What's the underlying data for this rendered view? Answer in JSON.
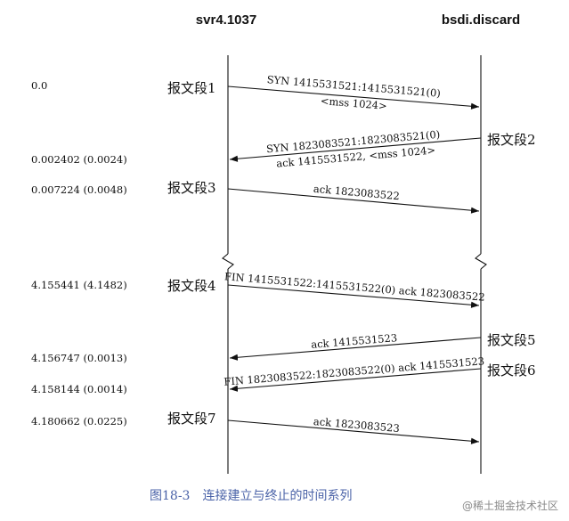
{
  "hosts": {
    "left": "svr4.1037",
    "right": "bsdi.discard"
  },
  "times": [
    "0.0",
    "0.002402 (0.0024)",
    "0.007224 (0.0048)",
    "4.155441 (4.1482)",
    "4.156747 (0.0013)",
    "4.158144 (0.0014)",
    "4.180662 (0.0225)"
  ],
  "segments": [
    {
      "label": "报文段1",
      "lines": [
        "SYN  1415531521:1415531521(0)",
        "<mss 1024>"
      ]
    },
    {
      "label": "报文段2",
      "lines": [
        "SYN  1823083521:1823083521(0)",
        "ack 1415531522, <mss 1024>"
      ]
    },
    {
      "label": "报文段3",
      "lines": [
        "ack 1823083522"
      ]
    },
    {
      "label": "报文段4",
      "lines": [
        "FIN  1415531522:1415531522(0) ack 1823083522"
      ]
    },
    {
      "label": "报文段5",
      "lines": [
        "ack 1415531523"
      ]
    },
    {
      "label": "报文段6",
      "lines": [
        "FIN  1823083522:1823083522(0) ack 1415531523"
      ]
    },
    {
      "label": "报文段7",
      "lines": [
        "ack 1823083523"
      ]
    }
  ],
  "caption": "图18-3　连接建立与终止的时间系列",
  "watermark": "@稀土掘金技术社区"
}
